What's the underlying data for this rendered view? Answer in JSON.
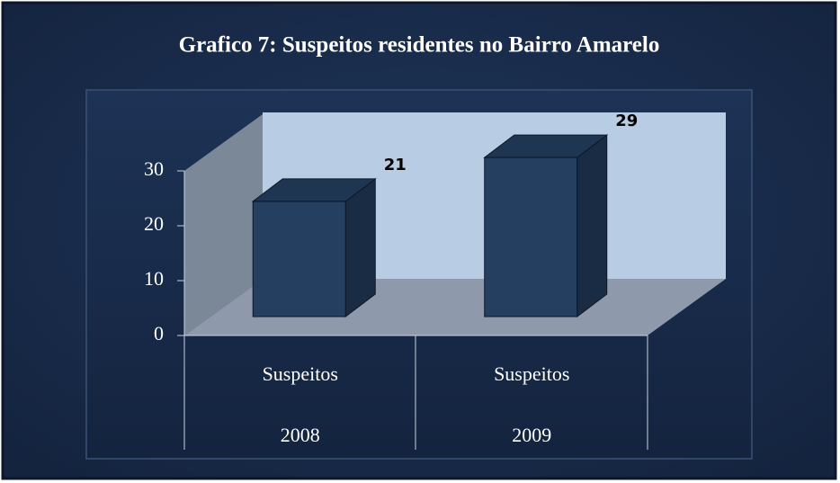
{
  "chart_data": {
    "type": "bar3d",
    "title": "Grafico 7: Suspeitos residentes no Bairro Amarelo",
    "categories": [
      "Suspeitos 2008",
      "Suspeitos 2009"
    ],
    "values": [
      21,
      29
    ],
    "color": "#243f60",
    "ylim": [
      0,
      30
    ],
    "yticks": [
      0,
      10,
      20,
      30
    ],
    "grid": false
  }
}
